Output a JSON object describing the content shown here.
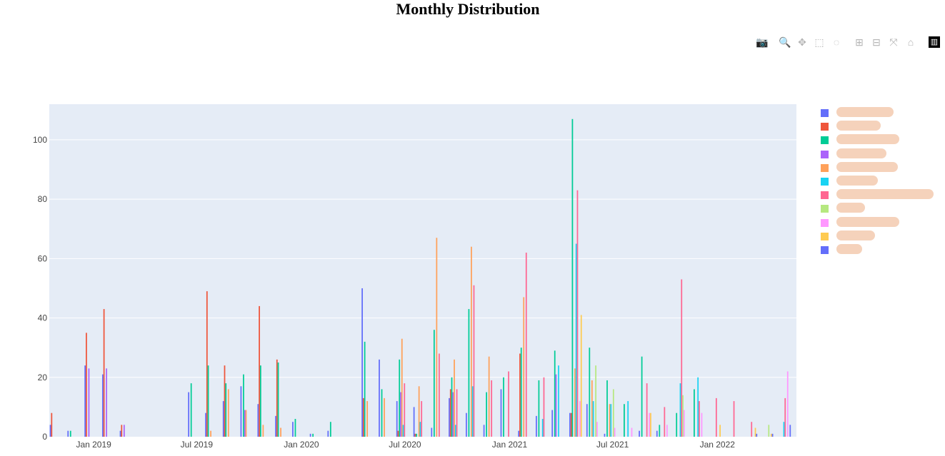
{
  "title": "Monthly Distribution",
  "modebar": {
    "icons": [
      {
        "name": "camera-icon",
        "glyph": "📷"
      },
      {
        "name": "zoom-icon",
        "glyph": "🔍"
      },
      {
        "name": "pan-icon",
        "glyph": "✥"
      },
      {
        "name": "box-select-icon",
        "glyph": "⬚"
      },
      {
        "name": "lasso-select-icon",
        "glyph": "◌"
      },
      {
        "name": "zoom-in-icon",
        "glyph": "⊞"
      },
      {
        "name": "zoom-out-icon",
        "glyph": "⊟"
      },
      {
        "name": "autoscale-icon",
        "glyph": "⤧"
      },
      {
        "name": "reset-axes-icon",
        "glyph": "⌂"
      },
      {
        "name": "plotly-logo-icon",
        "glyph": "▥"
      }
    ]
  },
  "chart_data": {
    "type": "bar",
    "title": "Monthly Distribution",
    "xlabel": "",
    "ylabel": "",
    "ylim": [
      0,
      112
    ],
    "yticks": [
      0,
      20,
      40,
      60,
      80,
      100
    ],
    "x_tick_labels": [
      "Jan 2019",
      "Jul 2019",
      "Jan 2020",
      "Jul 2020",
      "Jan 2021",
      "Jul 2021",
      "Jan 2022"
    ],
    "x_tick_dates": [
      "2019-01-01",
      "2019-07-01",
      "2020-01-01",
      "2020-07-01",
      "2021-01-01",
      "2021-07-01",
      "2022-01-01"
    ],
    "xlim": [
      "2018-10-15",
      "2022-05-20"
    ],
    "grid": true,
    "legend_position": "right",
    "background_color": "#e5ecf6",
    "series": [
      {
        "color": "#636efa",
        "points": [
          [
            "2018-10-28",
            4
          ],
          [
            "2018-11-28",
            2
          ],
          [
            "2018-12-28",
            24
          ],
          [
            "2019-01-28",
            21
          ],
          [
            "2019-02-28",
            2
          ],
          [
            "2019-06-28",
            15
          ],
          [
            "2019-07-28",
            8
          ],
          [
            "2019-08-28",
            12
          ],
          [
            "2019-09-28",
            17
          ],
          [
            "2019-10-28",
            11
          ],
          [
            "2019-11-28",
            7
          ],
          [
            "2019-12-28",
            5
          ],
          [
            "2020-01-28",
            1
          ],
          [
            "2020-02-28",
            2
          ],
          [
            "2020-04-28",
            50
          ],
          [
            "2020-05-28",
            26
          ],
          [
            "2020-06-28",
            12
          ],
          [
            "2020-07-28",
            10
          ],
          [
            "2020-08-28",
            3
          ],
          [
            "2020-09-28",
            13
          ],
          [
            "2020-10-28",
            8
          ],
          [
            "2020-11-28",
            4
          ],
          [
            "2020-12-28",
            16
          ],
          [
            "2021-01-28",
            2
          ],
          [
            "2021-02-28",
            7
          ],
          [
            "2021-03-28",
            9
          ],
          [
            "2021-04-28",
            8
          ],
          [
            "2021-05-28",
            11
          ],
          [
            "2021-06-28",
            1
          ],
          [
            "2021-08-28",
            2
          ],
          [
            "2021-09-28",
            2
          ]
        ]
      },
      {
        "color": "#ef553b",
        "points": [
          [
            "2018-10-28",
            8
          ],
          [
            "2018-12-28",
            35
          ],
          [
            "2019-01-28",
            43
          ],
          [
            "2019-02-28",
            4
          ],
          [
            "2019-07-28",
            49
          ],
          [
            "2019-08-28",
            24
          ],
          [
            "2019-10-28",
            44
          ],
          [
            "2019-11-28",
            26
          ],
          [
            "2020-04-28",
            13
          ],
          [
            "2020-06-28",
            2
          ],
          [
            "2020-07-28",
            1
          ],
          [
            "2020-09-28",
            16
          ],
          [
            "2021-01-28",
            28
          ],
          [
            "2021-04-28",
            8
          ]
        ]
      },
      {
        "color": "#00cc96",
        "points": [
          [
            "2018-11-28",
            2
          ],
          [
            "2019-06-28",
            18
          ],
          [
            "2019-07-28",
            24
          ],
          [
            "2019-08-28",
            18
          ],
          [
            "2019-09-28",
            21
          ],
          [
            "2019-10-28",
            24
          ],
          [
            "2019-11-28",
            25
          ],
          [
            "2019-12-28",
            6
          ],
          [
            "2020-01-28",
            1
          ],
          [
            "2020-02-28",
            5
          ],
          [
            "2020-04-28",
            32
          ],
          [
            "2020-05-28",
            16
          ],
          [
            "2020-06-28",
            26
          ],
          [
            "2020-07-28",
            1
          ],
          [
            "2020-08-28",
            36
          ],
          [
            "2020-09-28",
            20
          ],
          [
            "2020-10-28",
            43
          ],
          [
            "2020-11-28",
            15
          ],
          [
            "2020-12-28",
            20
          ],
          [
            "2021-01-28",
            30
          ],
          [
            "2021-02-28",
            19
          ],
          [
            "2021-03-28",
            29
          ],
          [
            "2021-04-28",
            107
          ],
          [
            "2021-05-28",
            30
          ],
          [
            "2021-06-28",
            19
          ],
          [
            "2021-07-28",
            11
          ],
          [
            "2021-08-28",
            27
          ],
          [
            "2021-09-28",
            4
          ],
          [
            "2021-10-28",
            8
          ],
          [
            "2021-11-28",
            16
          ]
        ]
      },
      {
        "color": "#ab63fa",
        "points": [
          [
            "2018-12-28",
            23
          ],
          [
            "2019-01-28",
            23
          ],
          [
            "2019-02-28",
            4
          ],
          [
            "2019-09-28",
            9
          ],
          [
            "2020-06-28",
            15
          ],
          [
            "2020-09-28",
            15
          ],
          [
            "2021-03-28",
            21
          ]
        ]
      },
      {
        "color": "#ffa15a",
        "points": [
          [
            "2019-07-28",
            2
          ],
          [
            "2019-08-28",
            16
          ],
          [
            "2019-09-28",
            9
          ],
          [
            "2019-10-28",
            4
          ],
          [
            "2019-11-28",
            3
          ],
          [
            "2020-04-28",
            12
          ],
          [
            "2020-05-28",
            13
          ],
          [
            "2020-06-28",
            33
          ],
          [
            "2020-07-28",
            17
          ],
          [
            "2020-08-28",
            67
          ],
          [
            "2020-09-28",
            26
          ],
          [
            "2020-10-28",
            64
          ],
          [
            "2020-11-28",
            27
          ],
          [
            "2021-01-28",
            47
          ],
          [
            "2021-04-28",
            23
          ],
          [
            "2021-05-28",
            19
          ],
          [
            "2021-06-28",
            11
          ]
        ]
      },
      {
        "color": "#19d3f3",
        "points": [
          [
            "2020-06-28",
            4
          ],
          [
            "2020-07-28",
            5
          ],
          [
            "2020-09-28",
            4
          ],
          [
            "2020-10-28",
            17
          ],
          [
            "2021-02-28",
            6
          ],
          [
            "2021-03-28",
            24
          ],
          [
            "2021-04-28",
            65
          ],
          [
            "2021-05-28",
            12
          ],
          [
            "2021-06-28",
            11
          ],
          [
            "2021-07-28",
            12
          ],
          [
            "2021-10-28",
            18
          ],
          [
            "2021-11-28",
            20
          ],
          [
            "2022-04-28",
            5
          ]
        ]
      },
      {
        "color": "#ff6692",
        "points": [
          [
            "2020-06-28",
            18
          ],
          [
            "2020-07-28",
            12
          ],
          [
            "2020-08-28",
            28
          ],
          [
            "2020-09-28",
            16
          ],
          [
            "2020-10-28",
            51
          ],
          [
            "2020-11-28",
            19
          ],
          [
            "2020-12-28",
            22
          ],
          [
            "2021-01-28",
            62
          ],
          [
            "2021-02-28",
            20
          ],
          [
            "2021-04-28",
            83
          ],
          [
            "2021-08-28",
            18
          ],
          [
            "2021-09-28",
            10
          ],
          [
            "2021-10-28",
            53
          ],
          [
            "2021-11-28",
            12
          ],
          [
            "2021-12-28",
            13
          ],
          [
            "2022-01-28",
            12
          ],
          [
            "2022-02-28",
            5
          ],
          [
            "2022-04-28",
            13
          ]
        ]
      },
      {
        "color": "#b6e880",
        "points": [
          [
            "2021-05-28",
            24
          ],
          [
            "2021-06-28",
            16
          ],
          [
            "2021-10-28",
            14
          ],
          [
            "2022-03-28",
            4
          ]
        ]
      },
      {
        "color": "#ff97ff",
        "points": [
          [
            "2021-04-28",
            12
          ],
          [
            "2021-05-28",
            5
          ],
          [
            "2021-06-28",
            3
          ],
          [
            "2021-07-28",
            3
          ],
          [
            "2021-08-28",
            8
          ],
          [
            "2021-09-28",
            4
          ],
          [
            "2021-10-28",
            9
          ],
          [
            "2021-11-28",
            8
          ],
          [
            "2022-04-28",
            22
          ]
        ]
      },
      {
        "color": "#fecb52",
        "points": [
          [
            "2021-04-28",
            41
          ],
          [
            "2021-08-28",
            8
          ],
          [
            "2021-12-28",
            4
          ],
          [
            "2022-02-28",
            3
          ],
          [
            "2022-03-28",
            1
          ]
        ]
      },
      {
        "color": "#636efa",
        "points": [
          [
            "2022-02-28",
            1
          ],
          [
            "2022-03-28",
            1
          ],
          [
            "2022-04-28",
            4
          ]
        ]
      }
    ]
  }
}
